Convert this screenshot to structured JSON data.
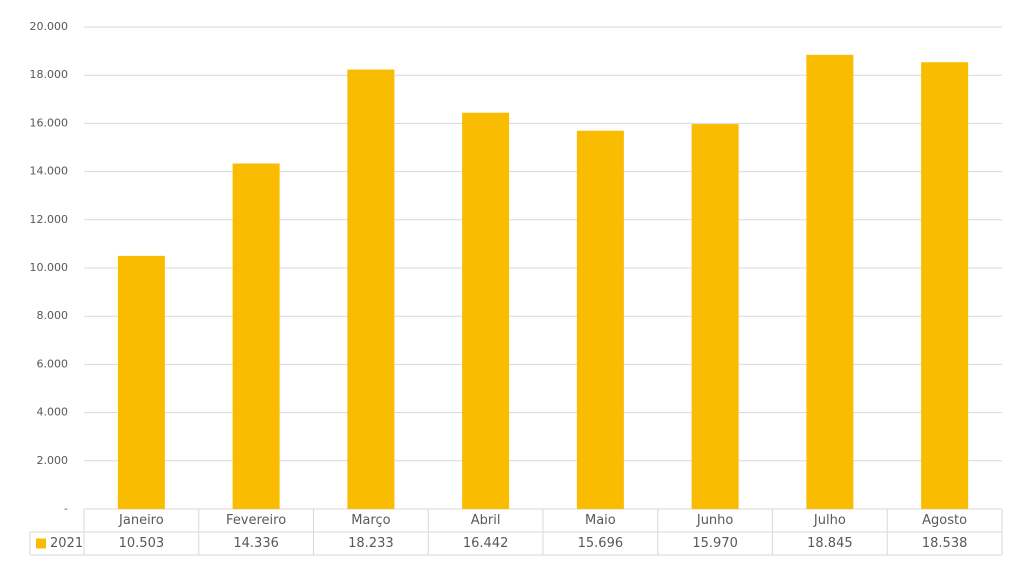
{
  "chart_data": {
    "type": "bar",
    "categories": [
      "Janeiro",
      "Fevereiro",
      "Março",
      "Abril",
      "Maio",
      "Junho",
      "Julho",
      "Agosto"
    ],
    "series": [
      {
        "name": "2021",
        "color": "#f9bc00",
        "values": [
          10503,
          14336,
          18233,
          16442,
          15696,
          15970,
          18845,
          18538
        ],
        "value_labels": [
          "10.503",
          "14.336",
          "18.233",
          "16.442",
          "15.696",
          "15.970",
          "18.845",
          "18.538"
        ]
      }
    ],
    "ylim": [
      0,
      20000
    ],
    "yticks": [
      {
        "value": 0,
        "label": "-"
      },
      {
        "value": 2000,
        "label": "2.000"
      },
      {
        "value": 4000,
        "label": "4.000"
      },
      {
        "value": 6000,
        "label": "6.000"
      },
      {
        "value": 8000,
        "label": "8.000"
      },
      {
        "value": 10000,
        "label": "10.000"
      },
      {
        "value": 12000,
        "label": "12.000"
      },
      {
        "value": 14000,
        "label": "14.000"
      },
      {
        "value": 16000,
        "label": "16.000"
      },
      {
        "value": 18000,
        "label": "18.000"
      },
      {
        "value": 20000,
        "label": "20.000"
      }
    ],
    "grid": true,
    "data_table": true
  }
}
